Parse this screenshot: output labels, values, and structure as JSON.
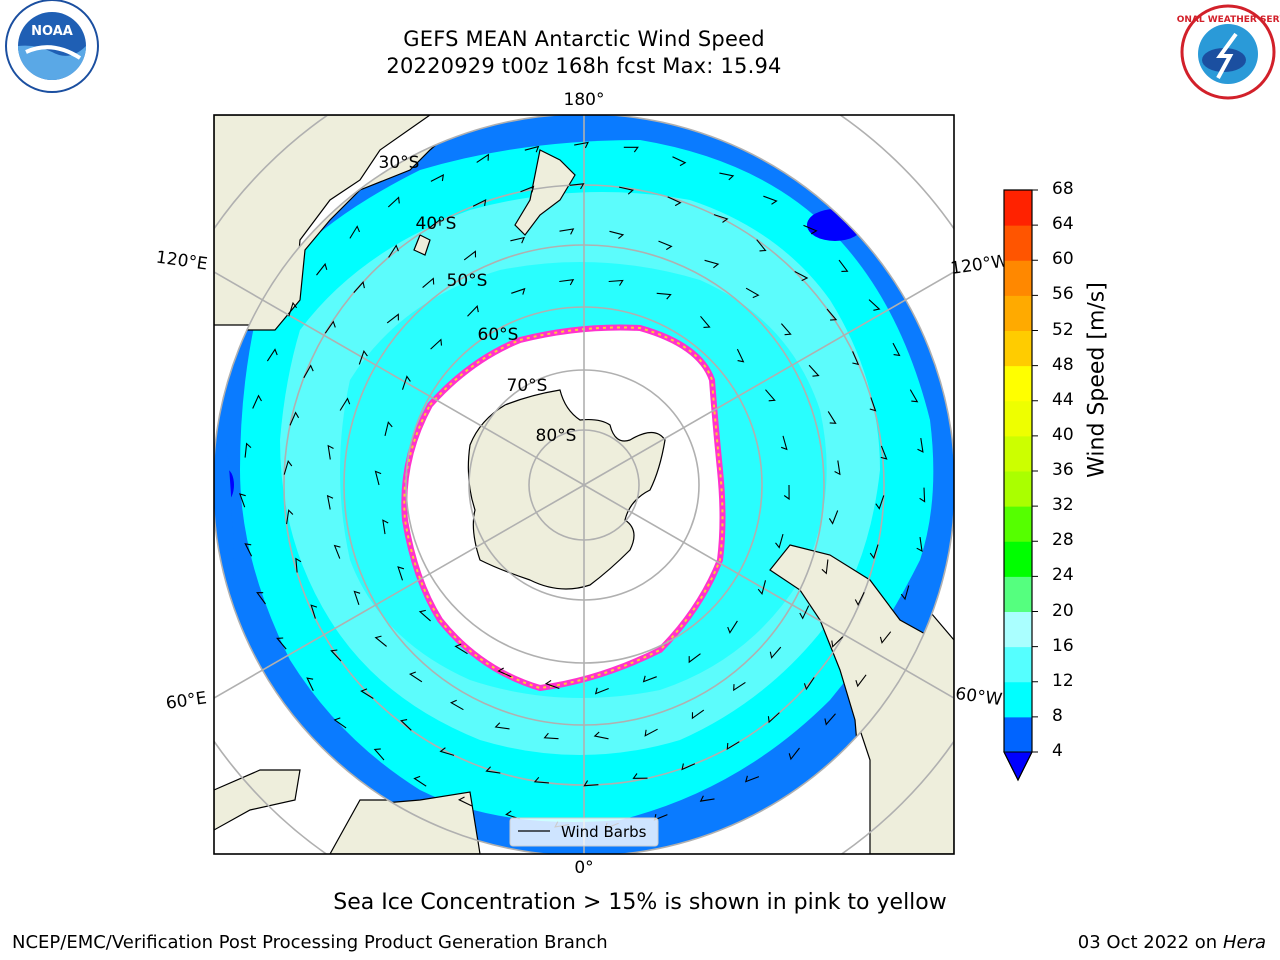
{
  "header": {
    "title_line1": "GEFS MEAN Antarctic Wind Speed",
    "title_line2": "20220929 t00z 168h fcst   Max: 15.94"
  },
  "logos": {
    "noaa_text": "NOAA",
    "nws_text": "NATIONAL WEATHER SERVICE"
  },
  "map": {
    "projection": "south polar stereographic",
    "longitude_labels": [
      "180°",
      "120°E",
      "120°W",
      "60°E",
      "60°W",
      "0°"
    ],
    "latitude_labels": [
      "30°S",
      "40°S",
      "50°S",
      "60°S",
      "70°S",
      "80°S"
    ],
    "legend_label": "Wind Barbs"
  },
  "colorbar": {
    "label": "Wind Speed [m/s]",
    "ticks": [
      "4",
      "8",
      "12",
      "16",
      "20",
      "24",
      "28",
      "32",
      "36",
      "40",
      "44",
      "48",
      "52",
      "56",
      "60",
      "64",
      "68"
    ],
    "colors": [
      "#0064ff",
      "#00ffff",
      "#55ffff",
      "#aaffff",
      "#55ff7f",
      "#00ff00",
      "#55ff00",
      "#aaff00",
      "#ccff00",
      "#eeff00",
      "#ffff00",
      "#ffcc00",
      "#ffaa00",
      "#ff8800",
      "#ff5500",
      "#ff2200",
      "#ff0000"
    ],
    "extend_color": "#0000ff"
  },
  "footer": {
    "note": "Sea Ice Concentration > 15% is shown in pink to yellow",
    "credit": "NCEP/EMC/Verification Post Processing Product Generation Branch",
    "date": "03 Oct 2022 on",
    "host": "Hera"
  }
}
